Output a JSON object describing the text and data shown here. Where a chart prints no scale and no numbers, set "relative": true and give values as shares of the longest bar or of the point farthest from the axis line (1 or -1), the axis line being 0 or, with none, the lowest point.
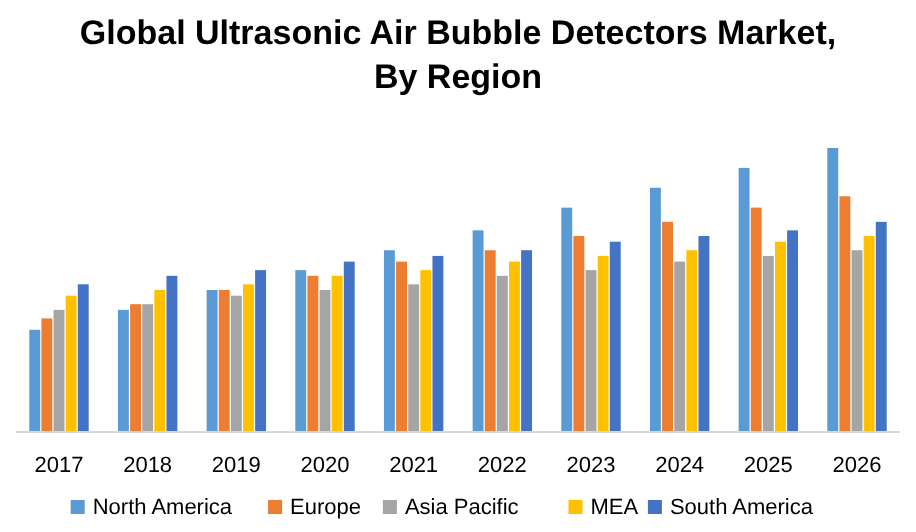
{
  "chart_data": {
    "type": "bar",
    "title": "Global Ultrasonic Air Bubble Detectors Market,\nBy Region",
    "relative": true,
    "legend": "bottom",
    "categories": [
      "2017",
      "2018",
      "2019",
      "2020",
      "2021",
      "2022",
      "2023",
      "2024",
      "2025",
      "2026"
    ],
    "series": [
      {
        "name": "North America",
        "color": "#5b9bd5",
        "values": [
          0.36,
          0.43,
          0.5,
          0.57,
          0.64,
          0.71,
          0.79,
          0.86,
          0.93,
          1
        ]
      },
      {
        "name": "Europe",
        "color": "#ed7d31",
        "values": [
          0.4,
          0.45,
          0.5,
          0.55,
          0.6,
          0.64,
          0.69,
          0.74,
          0.79,
          0.83
        ]
      },
      {
        "name": "Asia Pacific",
        "color": "#a5a5a5",
        "values": [
          0.43,
          0.45,
          0.48,
          0.5,
          0.52,
          0.55,
          0.57,
          0.6,
          0.62,
          0.64
        ]
      },
      {
        "name": "MEA",
        "color": "#ffc000",
        "values": [
          0.48,
          0.5,
          0.52,
          0.55,
          0.57,
          0.6,
          0.62,
          0.64,
          0.67,
          0.69
        ]
      },
      {
        "name": "South America",
        "color": "#4472c4",
        "values": [
          0.52,
          0.55,
          0.57,
          0.6,
          0.62,
          0.64,
          0.67,
          0.69,
          0.71,
          0.74
        ]
      }
    ]
  }
}
